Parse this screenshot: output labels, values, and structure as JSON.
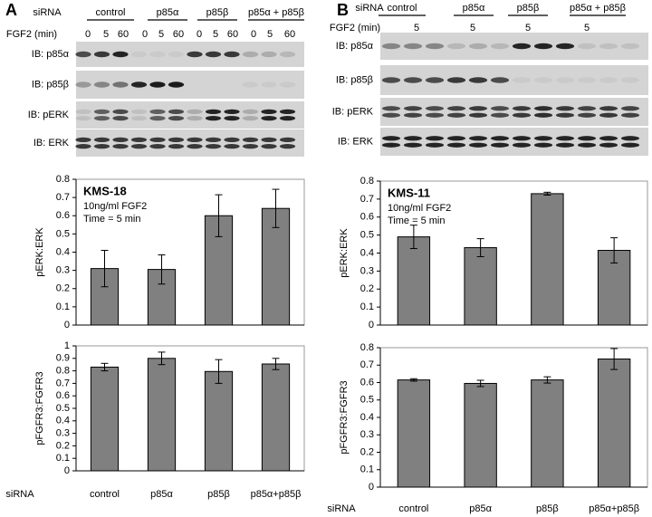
{
  "panels": [
    {
      "letter": "A",
      "sirna_label": "siRNA",
      "groups": [
        "control",
        "p85α",
        "p85β",
        "p85α + p85β"
      ],
      "fgf2_label": "FGF2 (min)",
      "times": [
        "0",
        "5",
        "60",
        "0",
        "5",
        "60",
        "0",
        "5",
        "60",
        "0",
        "5",
        "60"
      ],
      "blots": [
        "IB: p85α",
        "IB: p85β",
        "IB: pERK",
        "IB: ERK"
      ]
    },
    {
      "letter": "B",
      "sirna_label": "siRNA",
      "groups": [
        "control",
        "p85α",
        "p85β",
        "p85α + p85β"
      ],
      "fgf2_label": "FGF2 (min)",
      "times": [
        "5",
        "5",
        "5",
        "5"
      ],
      "blots": [
        "IB: p85α",
        "IB: p85β",
        "IB: pERK",
        "IB: ERK"
      ]
    }
  ],
  "chart_data": [
    {
      "type": "bar",
      "title": "KMS-18",
      "annotation": [
        "10ng/ml FGF2",
        "Time = 5 min"
      ],
      "y_label": "pERK:ERK",
      "values": [
        0.31,
        0.305,
        0.6,
        0.64
      ],
      "errors": [
        0.1,
        0.08,
        0.115,
        0.105
      ],
      "color": "#808080",
      "ylim": [
        0,
        0.8
      ],
      "yticks": [
        0,
        0.1,
        0.2,
        0.3,
        0.4,
        0.5,
        0.6,
        0.7,
        0.8
      ]
    },
    {
      "type": "bar",
      "y_label": "pFGFR3:FGFR3",
      "x_label": "siRNA",
      "categories": [
        "control",
        "p85α",
        "p85β",
        "p85α+p85β"
      ],
      "values": [
        0.83,
        0.9,
        0.795,
        0.855
      ],
      "errors": [
        0.03,
        0.05,
        0.095,
        0.045
      ],
      "color": "#808080",
      "ylim": [
        0,
        1
      ],
      "yticks": [
        0,
        0.1,
        0.2,
        0.3,
        0.4,
        0.5,
        0.6,
        0.7,
        0.8,
        0.9,
        1
      ]
    },
    {
      "type": "bar",
      "title": "KMS-11",
      "annotation": [
        "10ng/ml FGF2",
        "Time = 5 min"
      ],
      "y_label": "pERK:ERK",
      "values": [
        0.49,
        0.43,
        0.73,
        0.415
      ],
      "errors": [
        0.065,
        0.05,
        0.008,
        0.07
      ],
      "color": "#808080",
      "ylim": [
        0,
        0.8
      ],
      "yticks": [
        0,
        0.1,
        0.2,
        0.3,
        0.4,
        0.5,
        0.6,
        0.7,
        0.8
      ]
    },
    {
      "type": "bar",
      "y_label": "pFGFR3:FGFR3",
      "x_label": "siRNA",
      "categories": [
        "control",
        "p85α",
        "p85β",
        "p85α+p85β"
      ],
      "values": [
        0.615,
        0.595,
        0.615,
        0.735
      ],
      "errors": [
        0.007,
        0.018,
        0.018,
        0.06
      ],
      "color": "#808080",
      "ylim": [
        0,
        0.8
      ],
      "yticks": [
        0,
        0.1,
        0.2,
        0.3,
        0.4,
        0.5,
        0.6,
        0.7,
        0.8
      ]
    }
  ]
}
